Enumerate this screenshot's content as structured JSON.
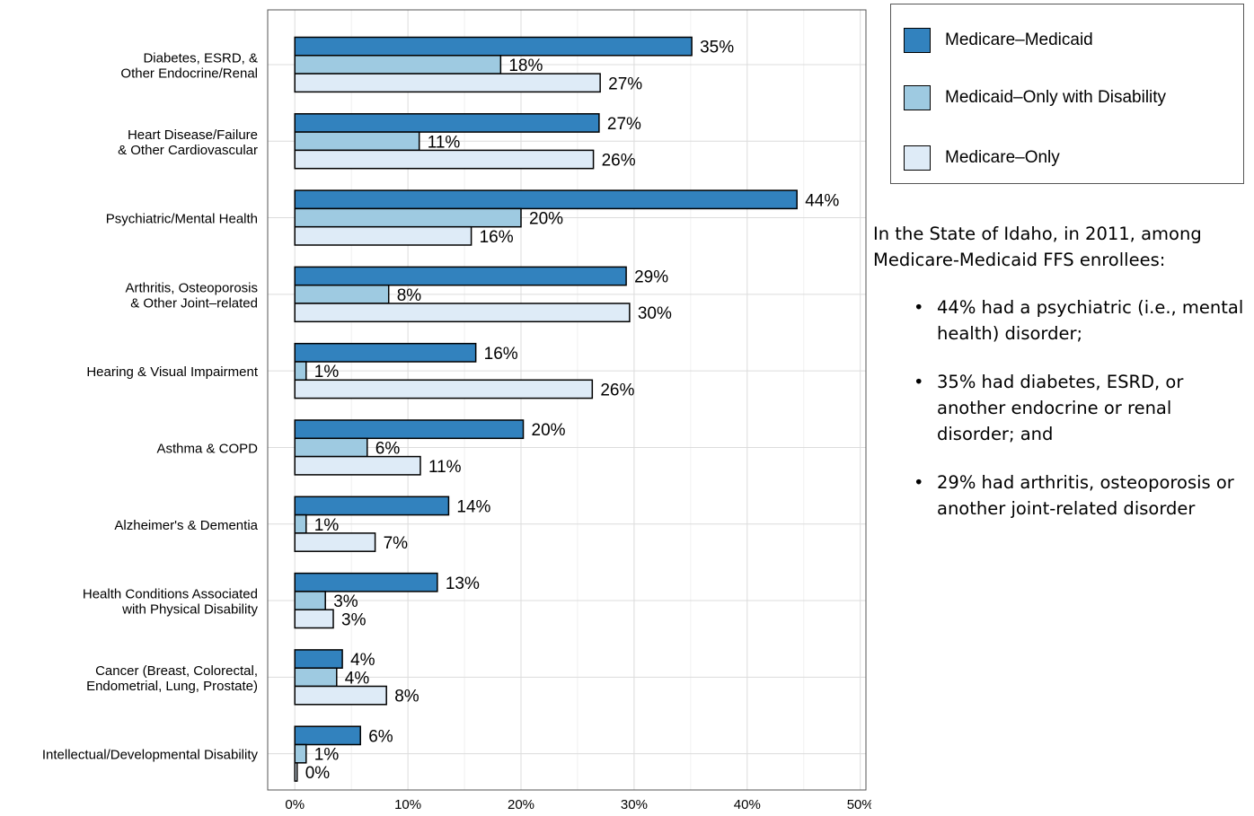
{
  "chart_data": {
    "type": "bar",
    "orientation": "horizontal",
    "categories": [
      [
        "Diabetes, ESRD, &",
        "Other Endocrine/Renal"
      ],
      [
        "Heart Disease/Failure",
        "& Other Cardiovascular"
      ],
      [
        "Psychiatric/Mental Health"
      ],
      [
        "Arthritis, Osteoporosis",
        "& Other Joint–related"
      ],
      [
        "Hearing & Visual Impairment"
      ],
      [
        "Asthma & COPD"
      ],
      [
        "Alzheimer's & Dementia"
      ],
      [
        "Health Conditions Associated",
        "with Physical Disability"
      ],
      [
        "Cancer (Breast, Colorectal,",
        "Endometrial, Lung, Prostate)"
      ],
      [
        "Intellectual/Developmental Disability"
      ]
    ],
    "series": [
      {
        "name": "Medicare–Medicaid",
        "color": "#3282be",
        "values": [
          35.1,
          26.9,
          44.4,
          29.3,
          16.0,
          20.2,
          13.6,
          12.6,
          4.2,
          5.8
        ]
      },
      {
        "name": "Medicaid–Only with Disability",
        "color": "#9ecae1",
        "values": [
          18.2,
          11.0,
          20.0,
          8.3,
          1.0,
          6.4,
          1.0,
          2.7,
          3.7,
          1.0
        ]
      },
      {
        "name": "Medicare–Only",
        "color": "#deebf7",
        "values": [
          27.0,
          26.4,
          15.6,
          29.6,
          26.3,
          11.1,
          7.1,
          3.4,
          8.1,
          0.2
        ]
      }
    ],
    "data_labels": [
      [
        "35%",
        "18%",
        "27%"
      ],
      [
        "27%",
        "11%",
        "26%"
      ],
      [
        "44%",
        "20%",
        "16%"
      ],
      [
        "29%",
        "8%",
        "30%"
      ],
      [
        "16%",
        "1%",
        "26%"
      ],
      [
        "20%",
        "6%",
        "11%"
      ],
      [
        "14%",
        "1%",
        "7%"
      ],
      [
        "13%",
        "3%",
        "3%"
      ],
      [
        "4%",
        "4%",
        "8%"
      ],
      [
        "6%",
        "1%",
        "0%"
      ]
    ],
    "xticks": [
      0,
      10,
      20,
      30,
      40,
      50
    ],
    "xtick_labels": [
      "0%",
      "10%",
      "20%",
      "30%",
      "40%",
      "50%"
    ],
    "xlim": [
      -2.4,
      50.5
    ],
    "grid": true,
    "legend_position": "top-right",
    "title": "",
    "xlabel": "",
    "ylabel": ""
  },
  "summary": {
    "intro": "In the State of Idaho, in 2011, among Medicare-Medicaid FFS enrollees:",
    "bullets": [
      "44% had a psychiatric (i.e., mental health) disorder;",
      "35% had diabetes, ESRD, or another endocrine or renal disorder; and",
      "29% had arthritis, osteoporosis or another joint-related disorder"
    ]
  }
}
